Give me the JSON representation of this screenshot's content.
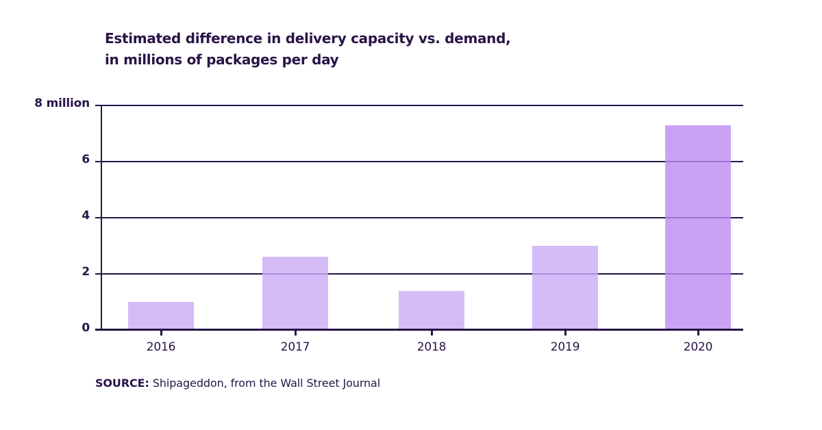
{
  "chart_data": {
    "type": "bar",
    "title_lines": [
      "Estimated difference in delivery capacity vs. demand,",
      "in millions of packages per day"
    ],
    "categories": [
      "2016",
      "2017",
      "2018",
      "2019",
      "2020"
    ],
    "values": [
      1.0,
      2.6,
      1.4,
      3.0,
      7.3
    ],
    "highlight_index": 4,
    "ylim": [
      0,
      8
    ],
    "yticks": [
      {
        "value": 0,
        "label": "0"
      },
      {
        "value": 2,
        "label": "2"
      },
      {
        "value": 4,
        "label": "4"
      },
      {
        "value": 6,
        "label": "6"
      },
      {
        "value": 8,
        "label": "8 million"
      }
    ],
    "grid": true,
    "legend": false,
    "xlabel": "",
    "ylabel": "millions of packages per day",
    "source": {
      "label": "SOURCE:",
      "text": "Shipageddon, from the Wall Street Journal"
    },
    "colors": {
      "ink": "#281447",
      "grid": "#241445",
      "bar": "#cbabf6",
      "bar_highlight": "#bc8bf3",
      "bar_opacity": 0.8,
      "background": "#ffffff"
    }
  }
}
